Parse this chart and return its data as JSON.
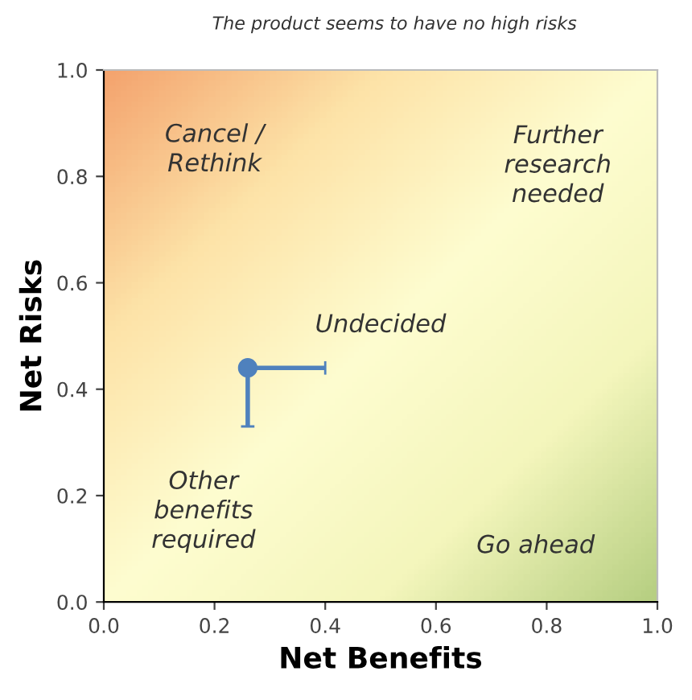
{
  "chart_data": {
    "type": "scatter",
    "title": "The product seems to have no high risks",
    "xlabel": "Net Benefits",
    "ylabel": "Net Risks",
    "series": [
      {
        "color": "#4f81bd",
        "x": [
          0.26
        ],
        "values": [
          0.44
        ],
        "xerrors": [
          [
            0.26,
            0.4
          ]
        ],
        "errors": [
          [
            0.33,
            0.44
          ]
        ]
      }
    ],
    "xlim": [
      0.0,
      1.0
    ],
    "ylim": [
      0.0,
      1.0
    ],
    "xticks": [
      {
        "value": 0,
        "label": "0.0"
      },
      0.2,
      0.4,
      0.6,
      0.8,
      {
        "value": 1,
        "label": "1.0"
      }
    ],
    "yticks": [
      {
        "value": 0,
        "label": "0.0"
      },
      0.2,
      0.4,
      0.6,
      0.8,
      {
        "value": 1,
        "label": "1.0"
      }
    ],
    "annotations": [
      "Cancel /\nRethink",
      "Further\nresearch\nneeded",
      "Undecided",
      "Other\nbenefits\nrequired",
      "Go ahead"
    ],
    "marker": "circle",
    "grid": false,
    "legend": false
  }
}
